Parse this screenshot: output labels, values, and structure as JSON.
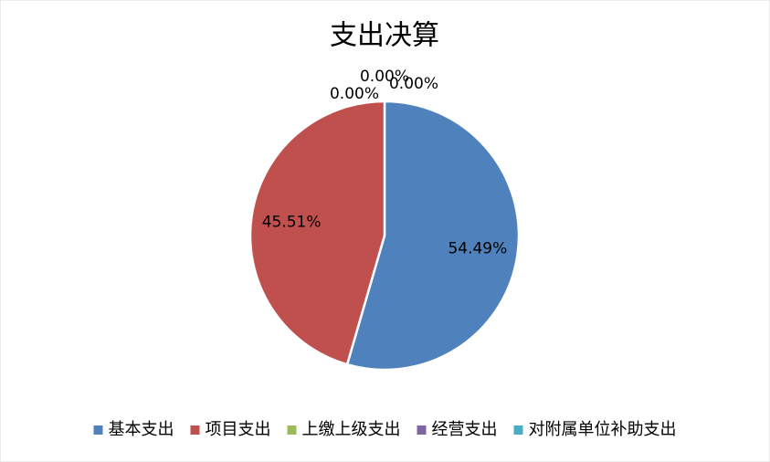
{
  "chart_data": {
    "type": "pie",
    "title": "支出决算",
    "categories": [
      "基本支出",
      "项目支出",
      "上缴上级支出",
      "经营支出",
      "对附属单位补助支出"
    ],
    "values": [
      54.49,
      45.51,
      0,
      0,
      0
    ],
    "value_labels": [
      "54.49%",
      "45.51%",
      "0.00%",
      "0.00%",
      "0.00%"
    ],
    "colors": [
      "#4f81bd",
      "#c0504d",
      "#9bbb59",
      "#8064a2",
      "#4bacc6"
    ],
    "legend": "bottom"
  }
}
